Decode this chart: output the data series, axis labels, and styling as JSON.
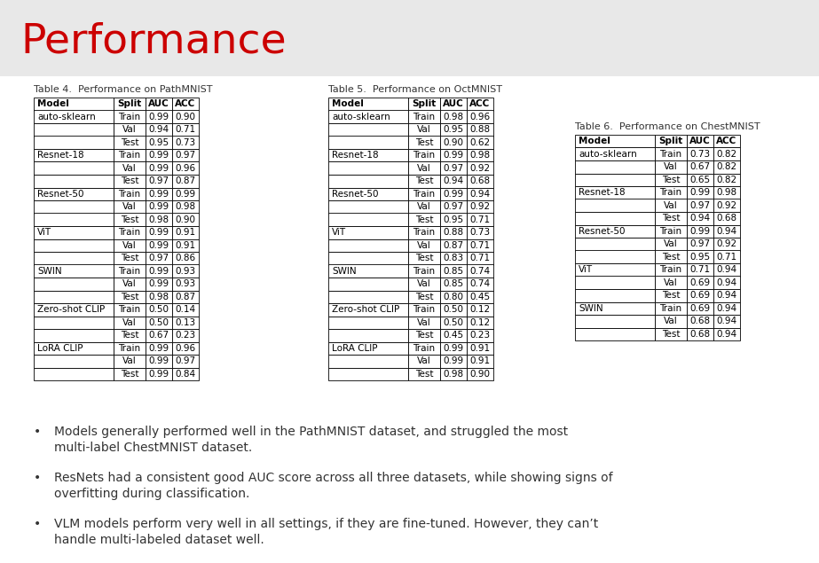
{
  "title": "Performance",
  "title_color": "#cc0000",
  "bg_header_color": "#e8e8e8",
  "bg_content_color": "#ffffff",
  "table4_caption": "Table 4.  Performance on PathMNIST",
  "table5_caption": "Table 5.  Performance on OctMNIST",
  "table6_caption": "Table 6.  Performance on ChestMNIST",
  "table4": {
    "headers": [
      "Model",
      "Split",
      "AUC",
      "ACC"
    ],
    "rows": [
      [
        "auto-sklearn",
        "Train",
        "0.99",
        "0.90"
      ],
      [
        "",
        "Val",
        "0.94",
        "0.71"
      ],
      [
        "",
        "Test",
        "0.95",
        "0.73"
      ],
      [
        "Resnet-18",
        "Train",
        "0.99",
        "0.97"
      ],
      [
        "",
        "Val",
        "0.99",
        "0.96"
      ],
      [
        "",
        "Test",
        "0.97",
        "0.87"
      ],
      [
        "Resnet-50",
        "Train",
        "0.99",
        "0.99"
      ],
      [
        "",
        "Val",
        "0.99",
        "0.98"
      ],
      [
        "",
        "Test",
        "0.98",
        "0.90"
      ],
      [
        "ViT",
        "Train",
        "0.99",
        "0.91"
      ],
      [
        "",
        "Val",
        "0.99",
        "0.91"
      ],
      [
        "",
        "Test",
        "0.97",
        "0.86"
      ],
      [
        "SWIN",
        "Train",
        "0.99",
        "0.93"
      ],
      [
        "",
        "Val",
        "0.99",
        "0.93"
      ],
      [
        "",
        "Test",
        "0.98",
        "0.87"
      ],
      [
        "Zero-shot CLIP",
        "Train",
        "0.50",
        "0.14"
      ],
      [
        "",
        "Val",
        "0.50",
        "0.13"
      ],
      [
        "",
        "Test",
        "0.67",
        "0.23"
      ],
      [
        "LoRA CLIP",
        "Train",
        "0.99",
        "0.96"
      ],
      [
        "",
        "Val",
        "0.99",
        "0.97"
      ],
      [
        "",
        "Test",
        "0.99",
        "0.84"
      ]
    ]
  },
  "table5": {
    "headers": [
      "Model",
      "Split",
      "AUC",
      "ACC"
    ],
    "rows": [
      [
        "auto-sklearn",
        "Train",
        "0.98",
        "0.96"
      ],
      [
        "",
        "Val",
        "0.95",
        "0.88"
      ],
      [
        "",
        "Test",
        "0.90",
        "0.62"
      ],
      [
        "Resnet-18",
        "Train",
        "0.99",
        "0.98"
      ],
      [
        "",
        "Val",
        "0.97",
        "0.92"
      ],
      [
        "",
        "Test",
        "0.94",
        "0.68"
      ],
      [
        "Resnet-50",
        "Train",
        "0.99",
        "0.94"
      ],
      [
        "",
        "Val",
        "0.97",
        "0.92"
      ],
      [
        "",
        "Test",
        "0.95",
        "0.71"
      ],
      [
        "ViT",
        "Train",
        "0.88",
        "0.73"
      ],
      [
        "",
        "Val",
        "0.87",
        "0.71"
      ],
      [
        "",
        "Test",
        "0.83",
        "0.71"
      ],
      [
        "SWIN",
        "Train",
        "0.85",
        "0.74"
      ],
      [
        "",
        "Val",
        "0.85",
        "0.74"
      ],
      [
        "",
        "Test",
        "0.80",
        "0.45"
      ],
      [
        "Zero-shot CLIP",
        "Train",
        "0.50",
        "0.12"
      ],
      [
        "",
        "Val",
        "0.50",
        "0.12"
      ],
      [
        "",
        "Test",
        "0.45",
        "0.23"
      ],
      [
        "LoRA CLIP",
        "Train",
        "0.99",
        "0.91"
      ],
      [
        "",
        "Val",
        "0.99",
        "0.91"
      ],
      [
        "",
        "Test",
        "0.98",
        "0.90"
      ]
    ]
  },
  "table6": {
    "headers": [
      "Model",
      "Split",
      "AUC",
      "ACC"
    ],
    "rows": [
      [
        "auto-sklearn",
        "Train",
        "0.73",
        "0.82"
      ],
      [
        "",
        "Val",
        "0.67",
        "0.82"
      ],
      [
        "",
        "Test",
        "0.65",
        "0.82"
      ],
      [
        "Resnet-18",
        "Train",
        "0.99",
        "0.98"
      ],
      [
        "",
        "Val",
        "0.97",
        "0.92"
      ],
      [
        "",
        "Test",
        "0.94",
        "0.68"
      ],
      [
        "Resnet-50",
        "Train",
        "0.99",
        "0.94"
      ],
      [
        "",
        "Val",
        "0.97",
        "0.92"
      ],
      [
        "",
        "Test",
        "0.95",
        "0.71"
      ],
      [
        "ViT",
        "Train",
        "0.71",
        "0.94"
      ],
      [
        "",
        "Val",
        "0.69",
        "0.94"
      ],
      [
        "",
        "Test",
        "0.69",
        "0.94"
      ],
      [
        "SWIN",
        "Train",
        "0.69",
        "0.94"
      ],
      [
        "",
        "Val",
        "0.68",
        "0.94"
      ],
      [
        "",
        "Test",
        "0.68",
        "0.94"
      ]
    ]
  },
  "bullets": [
    "Models generally performed well in the PathMNIST dataset, and struggled the most\nmulti-label ChestMNIST dataset.",
    "ResNets had a consistent good AUC score across all three datasets, while showing signs of\noverfitting during classification.",
    "VLM models perform very well in all settings, if they are fine-tuned. However, they can’t\nhandle multi-labeled dataset well."
  ],
  "title_fontsize": 34,
  "caption_fontsize": 8,
  "header_fontsize": 7.5,
  "cell_fontsize": 7.5,
  "bullet_fontsize": 10
}
